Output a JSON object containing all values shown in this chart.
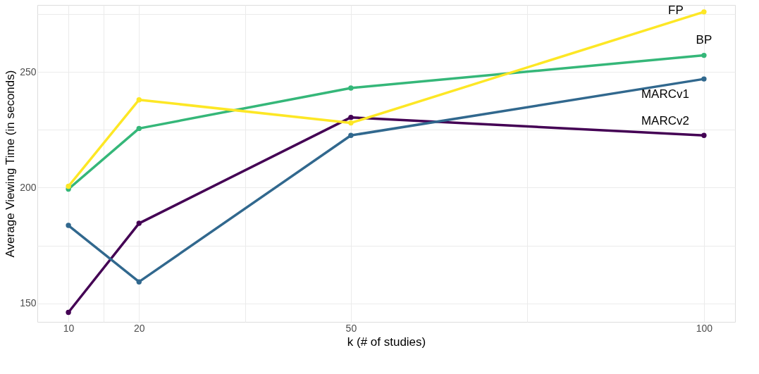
{
  "chart_data": {
    "type": "line",
    "xlabel": "k (# of studies)",
    "ylabel": "Average Viewing Time (in seconds)",
    "x": [
      10,
      20,
      50,
      100
    ],
    "series": [
      {
        "name": "MARCv2",
        "color": "#440154",
        "values": [
          146.1,
          184.6,
          230.4,
          222.6
        ]
      },
      {
        "name": "MARCv1",
        "color": "#31688e",
        "values": [
          183.7,
          159.3,
          222.6,
          247.0
        ]
      },
      {
        "name": "BP",
        "color": "#35b779",
        "values": [
          199.4,
          225.6,
          243.1,
          257.2
        ]
      },
      {
        "name": "FP",
        "color": "#fde725",
        "values": [
          200.6,
          238.0,
          228.0,
          276.0
        ]
      }
    ],
    "xlim": [
      5.6,
      104.4
    ],
    "ylim": [
      142,
      279
    ],
    "xticks": [
      10,
      {
        "value": 15,
        "label": null
      },
      20,
      {
        "value": 35,
        "label": null
      },
      50,
      {
        "value": 75,
        "label": null
      },
      100
    ],
    "yticks": [
      150,
      {
        "value": 175,
        "label": null
      },
      200,
      {
        "value": 225,
        "label": null
      },
      250,
      {
        "value": 275,
        "label": null
      }
    ],
    "grid": true,
    "legend": false,
    "marker": "circle",
    "line_style": "solid"
  }
}
